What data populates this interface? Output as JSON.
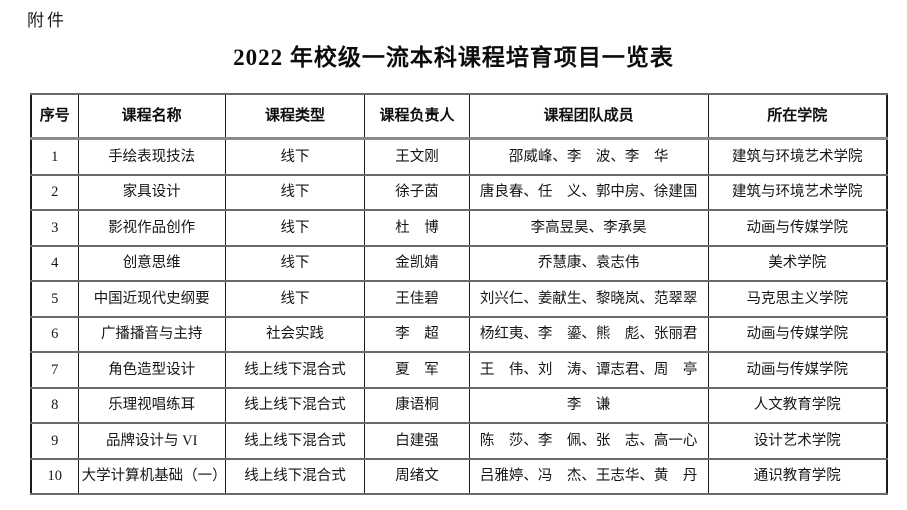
{
  "page": {
    "attachment_label": "附件",
    "title": "2022 年校级一流本科课程培育项目一览表"
  },
  "colors": {
    "background": "#ffffff",
    "text": "#161616",
    "outer_border": "#1c1c1c",
    "inner_horizontal_border": "#6a6a6a"
  },
  "table": {
    "column_widths_percent": [
      5.5,
      17.2,
      16.3,
      12.2,
      27.9,
      20.9
    ],
    "headers": [
      "序号",
      "课程名称",
      "课程类型",
      "课程负责人",
      "课程团队成员",
      "所在学院"
    ],
    "rows": [
      [
        "1",
        "手绘表现技法",
        "线下",
        "王文刚",
        "邵威峰、李　波、李　华",
        "建筑与环境艺术学院"
      ],
      [
        "2",
        "家具设计",
        "线下",
        "徐子茵",
        "唐良春、任　义、郭中房、徐建国",
        "建筑与环境艺术学院"
      ],
      [
        "3",
        "影视作品创作",
        "线下",
        "杜　博",
        "李高昱昊、李承昊",
        "动画与传媒学院"
      ],
      [
        "4",
        "创意思维",
        "线下",
        "金凯婧",
        "乔慧康、袁志伟",
        "美术学院"
      ],
      [
        "5",
        "中国近现代史纲要",
        "线下",
        "王佳碧",
        "刘兴仁、姜献生、黎晓岚、范翠翠",
        "马克思主义学院"
      ],
      [
        "6",
        "广播播音与主持",
        "社会实践",
        "李　超",
        "杨红夷、李　鎏、熊　彪、张丽君",
        "动画与传媒学院"
      ],
      [
        "7",
        "角色造型设计",
        "线上线下混合式",
        "夏　军",
        "王　伟、刘　涛、谭志君、周　亭",
        "动画与传媒学院"
      ],
      [
        "8",
        "乐理视唱练耳",
        "线上线下混合式",
        "康语桐",
        "李　谦",
        "人文教育学院"
      ],
      [
        "9",
        "品牌设计与 VI",
        "线上线下混合式",
        "白建强",
        "陈　莎、李　佩、张　志、高一心",
        "设计艺术学院"
      ],
      [
        "10",
        "大学计算机基础（一）",
        "线上线下混合式",
        "周绪文",
        "吕雅婷、冯　杰、王志华、黄　丹",
        "通识教育学院"
      ]
    ]
  }
}
